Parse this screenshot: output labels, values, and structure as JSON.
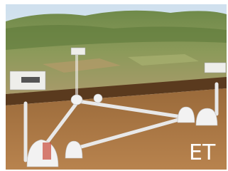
{
  "label": "ET"
}
